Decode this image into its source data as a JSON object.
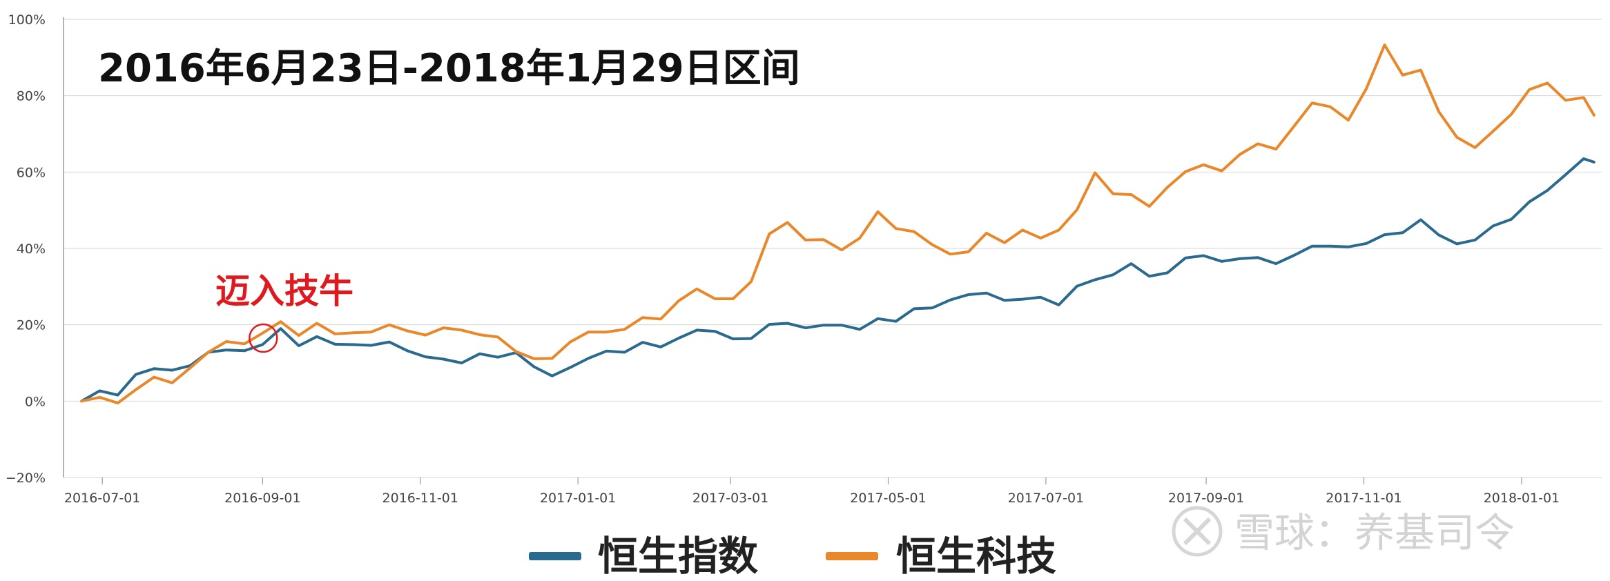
{
  "chart_data": {
    "type": "line",
    "title": "2016年6月23日-2018年1月29日区间",
    "annotation": "迈入技牛",
    "annotation_x": "2016-09-01",
    "ylim": [
      -20,
      100
    ],
    "yticks": [
      "100%",
      "80%",
      "60%",
      "40%",
      "20%",
      "0%",
      "−20%"
    ],
    "yticks_values": [
      100,
      80,
      60,
      40,
      20,
      0,
      -20
    ],
    "x_start": "2016-06-23",
    "x_end": "2018-01-29",
    "xticks": [
      "2016-07-01",
      "2016-09-01",
      "2016-11-01",
      "2017-01-01",
      "2017-03-01",
      "2017-05-01",
      "2017-07-01",
      "2017-09-01",
      "2017-11-01",
      "2018-01-01"
    ],
    "grid": true,
    "legend_placement": "bottom-center",
    "x": [
      "2016-06-23",
      "2016-06-30",
      "2016-07-07",
      "2016-07-14",
      "2016-07-21",
      "2016-07-28",
      "2016-08-04",
      "2016-08-11",
      "2016-08-18",
      "2016-08-25",
      "2016-09-01",
      "2016-09-08",
      "2016-09-15",
      "2016-09-22",
      "2016-09-29",
      "2016-10-06",
      "2016-10-13",
      "2016-10-20",
      "2016-10-27",
      "2016-11-03",
      "2016-11-10",
      "2016-11-17",
      "2016-11-24",
      "2016-12-01",
      "2016-12-08",
      "2016-12-15",
      "2016-12-22",
      "2016-12-29",
      "2017-01-05",
      "2017-01-12",
      "2017-01-19",
      "2017-01-26",
      "2017-02-02",
      "2017-02-09",
      "2017-02-16",
      "2017-02-23",
      "2017-03-02",
      "2017-03-09",
      "2017-03-16",
      "2017-03-23",
      "2017-03-30",
      "2017-04-06",
      "2017-04-13",
      "2017-04-20",
      "2017-04-27",
      "2017-05-04",
      "2017-05-11",
      "2017-05-18",
      "2017-05-25",
      "2017-06-01",
      "2017-06-08",
      "2017-06-15",
      "2017-06-22",
      "2017-06-29",
      "2017-07-06",
      "2017-07-13",
      "2017-07-20",
      "2017-07-27",
      "2017-08-03",
      "2017-08-10",
      "2017-08-17",
      "2017-08-24",
      "2017-08-31",
      "2017-09-07",
      "2017-09-14",
      "2017-09-21",
      "2017-09-28",
      "2017-10-05",
      "2017-10-12",
      "2017-10-19",
      "2017-10-26",
      "2017-11-02",
      "2017-11-09",
      "2017-11-16",
      "2017-11-23",
      "2017-11-30",
      "2017-12-07",
      "2017-12-14",
      "2017-12-21",
      "2017-12-28",
      "2018-01-04",
      "2018-01-11",
      "2018-01-18",
      "2018-01-25",
      "2018-01-29"
    ],
    "series": [
      {
        "name": "恒生指数",
        "color": "#2b6a8f",
        "values": [
          0.0,
          2.7,
          1.6,
          7.0,
          8.5,
          8.1,
          9.3,
          12.8,
          13.4,
          13.2,
          14.8,
          19.0,
          14.5,
          16.9,
          14.9,
          14.8,
          14.6,
          15.5,
          13.2,
          11.6,
          11.0,
          10.0,
          12.4,
          11.5,
          12.7,
          9.0,
          6.6,
          8.8,
          11.2,
          13.1,
          12.8,
          15.4,
          14.2,
          16.5,
          18.6,
          18.3,
          16.3,
          16.4,
          20.1,
          20.4,
          19.2,
          19.9,
          19.9,
          18.8,
          21.6,
          20.9,
          24.2,
          24.4,
          26.5,
          27.9,
          28.3,
          26.4,
          26.7,
          27.2,
          25.2,
          30.1,
          31.8,
          33.1,
          36.0,
          32.7,
          33.6,
          37.5,
          38.1,
          36.6,
          37.3,
          37.6,
          36.0,
          38.2,
          40.6,
          40.6,
          40.4,
          41.3,
          43.6,
          44.1,
          47.5,
          43.5,
          41.2,
          42.2,
          45.9,
          47.6,
          52.2,
          55.2,
          59.3,
          63.5,
          62.6
        ]
      },
      {
        "name": "恒生科技",
        "color": "#e8882a",
        "values": [
          0.0,
          1.0,
          -0.5,
          3.0,
          6.3,
          4.8,
          8.7,
          12.8,
          15.6,
          15.0,
          17.8,
          20.8,
          17.2,
          20.4,
          17.6,
          17.9,
          18.1,
          20.0,
          18.4,
          17.3,
          19.2,
          18.6,
          17.4,
          16.8,
          13.0,
          11.1,
          11.2,
          15.5,
          18.1,
          18.1,
          18.8,
          21.9,
          21.5,
          26.3,
          29.4,
          26.8,
          26.8,
          31.3,
          43.8,
          46.8,
          42.2,
          42.3,
          39.6,
          42.7,
          49.6,
          45.2,
          44.4,
          41.0,
          38.5,
          39.1,
          44.0,
          41.5,
          44.8,
          42.7,
          44.8,
          50.1,
          59.8,
          54.3,
          54.1,
          51.0,
          56.0,
          60.1,
          61.9,
          60.3,
          64.6,
          67.4,
          66.0,
          72.0,
          78.1,
          77.1,
          73.6,
          81.9,
          93.3,
          85.4,
          86.7,
          75.8,
          69.1,
          66.4,
          70.7,
          75.1,
          81.6,
          83.3,
          78.8,
          79.5,
          74.9
        ]
      }
    ]
  },
  "legend": {
    "items": [
      {
        "label": "恒生指数",
        "color": "#2b6a8f"
      },
      {
        "label": "恒生科技",
        "color": "#e8882a"
      }
    ]
  },
  "watermark": {
    "text": "雪球：养基司令",
    "icon": "xueqiu-logo-icon"
  }
}
